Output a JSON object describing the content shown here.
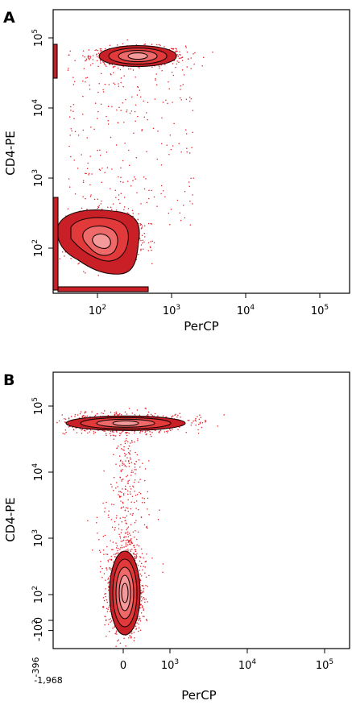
{
  "chart_data": [
    {
      "panel": "A",
      "type": "scatter",
      "xlabel": "PerCP",
      "ylabel": "CD4-PE",
      "x_scale": "log",
      "y_scale": "log",
      "xlim": [
        20,
        250000
      ],
      "ylim": [
        30,
        200000
      ],
      "x_ticks": [
        {
          "value": 100,
          "base": "10",
          "exp": "2"
        },
        {
          "value": 1000,
          "base": "10",
          "exp": "3"
        },
        {
          "value": 10000,
          "base": "10",
          "exp": "4"
        },
        {
          "value": 100000,
          "base": "10",
          "exp": "5"
        }
      ],
      "y_ticks": [
        {
          "value": 100,
          "base": "10",
          "exp": "2"
        },
        {
          "value": 1000,
          "base": "10",
          "exp": "3"
        },
        {
          "value": 10000,
          "base": "10",
          "exp": "4"
        },
        {
          "value": 100000,
          "base": "10",
          "exp": "5"
        }
      ],
      "populations": [
        {
          "center_x": 350,
          "center_y": 55000,
          "spread_x": 0.32,
          "spread_y": 0.07,
          "count": 700
        },
        {
          "center_x": 130,
          "center_y": 140,
          "spread_x": 0.22,
          "spread_y": 0.17,
          "count": 1200
        },
        {
          "center_x": 20,
          "center_y": 900,
          "spread_x": 0.02,
          "spread_y": 0.9,
          "count": 200
        }
      ],
      "point_color": "#e8202a",
      "contour_fill": [
        "#c91f26",
        "#e23a3a",
        "#ee6a6a",
        "#f49a9a"
      ],
      "contour_stroke": "#1a0505",
      "grid": false
    },
    {
      "panel": "B",
      "type": "scatter",
      "xlabel": "PerCP",
      "ylabel": "CD4-PE",
      "x_scale": "biexponential",
      "y_scale": "biexponential",
      "x_ticks": [
        {
          "value": -1968,
          "text": "-1,968"
        },
        {
          "value": 0,
          "text": "0"
        },
        {
          "value": 1000,
          "base": "10",
          "exp": "3"
        },
        {
          "value": 10000,
          "base": "10",
          "exp": "4"
        },
        {
          "value": 100000,
          "base": "10",
          "exp": "5"
        }
      ],
      "y_ticks": [
        {
          "value": -396,
          "text": "-396"
        },
        {
          "value": -100,
          "base": "-10",
          "exp": "2"
        },
        {
          "value": 0,
          "text": "0"
        },
        {
          "value": 100,
          "base": "10",
          "exp": "2"
        },
        {
          "value": 1000,
          "base": "10",
          "exp": "3"
        },
        {
          "value": 10000,
          "base": "10",
          "exp": "4"
        },
        {
          "value": 100000,
          "base": "10",
          "exp": "5"
        }
      ],
      "populations": [
        {
          "center_x": 0,
          "center_y": 55000,
          "spread_x": 0.5,
          "spread_y": 0.05,
          "count": 900
        },
        {
          "center_x": 0,
          "center_y": -40,
          "spread_x": 0.18,
          "spread_y": 0.5,
          "count": 1300
        }
      ],
      "point_color": "#e8202a",
      "contour_fill": [
        "#c91f26",
        "#e23a3a",
        "#ee6a6a",
        "#f49a9a"
      ],
      "contour_stroke": "#1a0505",
      "grid": false
    }
  ]
}
